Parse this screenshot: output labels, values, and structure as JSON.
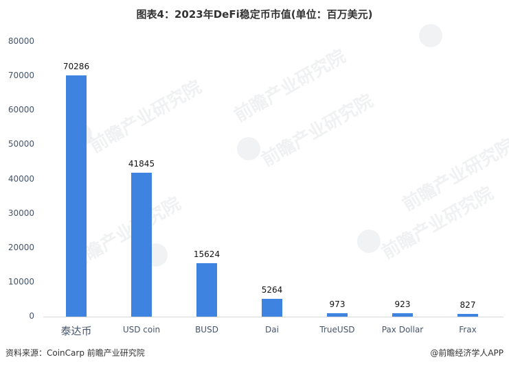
{
  "title": "图表4：2023年DeFi稳定币市值(单位：百万美元)",
  "footer": {
    "source": "资料来源：CoinCarp 前瞻产业研究院",
    "credit": "@前瞻经济学人APP"
  },
  "watermark": "前瞻产业研究院",
  "y_ticks": [
    "80000",
    "70000",
    "60000",
    "50000",
    "40000",
    "30000",
    "20000",
    "10000",
    "0"
  ],
  "colors": {
    "bar": "#3f83e0",
    "axis": "#d9d9d9",
    "tick_text": "#44546a"
  },
  "chart_data": {
    "type": "bar",
    "title": "图表4：2023年DeFi稳定币市值(单位：百万美元)",
    "xlabel": "",
    "ylabel": "百万美元",
    "ylim": [
      0,
      80000
    ],
    "yticks": [
      0,
      10000,
      20000,
      30000,
      40000,
      50000,
      60000,
      70000,
      80000
    ],
    "grid": false,
    "legend": null,
    "categories": [
      "泰达币",
      "USD coin",
      "BUSD",
      "Dai",
      "TrueUSD",
      "Pax Dollar",
      "Frax"
    ],
    "values": [
      70286,
      41845,
      15624,
      5264,
      973,
      923,
      827
    ],
    "labels": [
      "70286",
      "41845",
      "15624",
      "5264",
      "973",
      "923",
      "827"
    ],
    "source": "资料来源：CoinCarp 前瞻产业研究院"
  }
}
